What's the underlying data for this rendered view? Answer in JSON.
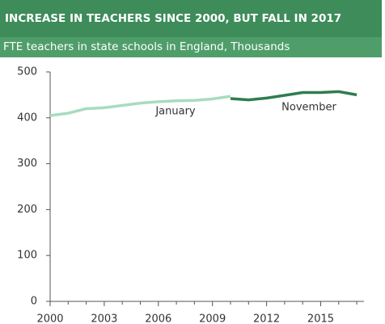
{
  "chart_data": {
    "type": "line",
    "title": "INCREASE IN TEACHERS SINCE 2000, BUT FALL IN 2017",
    "subtitle": "FTE teachers in state schools in England, Thousands",
    "xlim": [
      2000,
      2017.4
    ],
    "xticks": [
      2000,
      2003,
      2006,
      2009,
      2012,
      2015
    ],
    "xminorticks": [
      2001,
      2002,
      2004,
      2005,
      2007,
      2008,
      2010,
      2011,
      2013,
      2014,
      2016,
      2017
    ],
    "ylim": [
      0,
      500
    ],
    "yticks": [
      0,
      100,
      200,
      300,
      400,
      500
    ],
    "series": [
      {
        "name": "January",
        "color": "#a8dcbf",
        "x": [
          2000,
          2001,
          2002,
          2003,
          2004,
          2005,
          2006,
          2007,
          2008,
          2009,
          2010
        ],
        "values": [
          405,
          410,
          420,
          422,
          427,
          432,
          435,
          437,
          438,
          441,
          447
        ]
      },
      {
        "name": "November",
        "color": "#2f7d4f",
        "x": [
          2010,
          2011,
          2012,
          2013,
          2014,
          2015,
          2016,
          2017
        ],
        "values": [
          442,
          439,
          443,
          449,
          455,
          455,
          457,
          450
        ]
      }
    ]
  }
}
